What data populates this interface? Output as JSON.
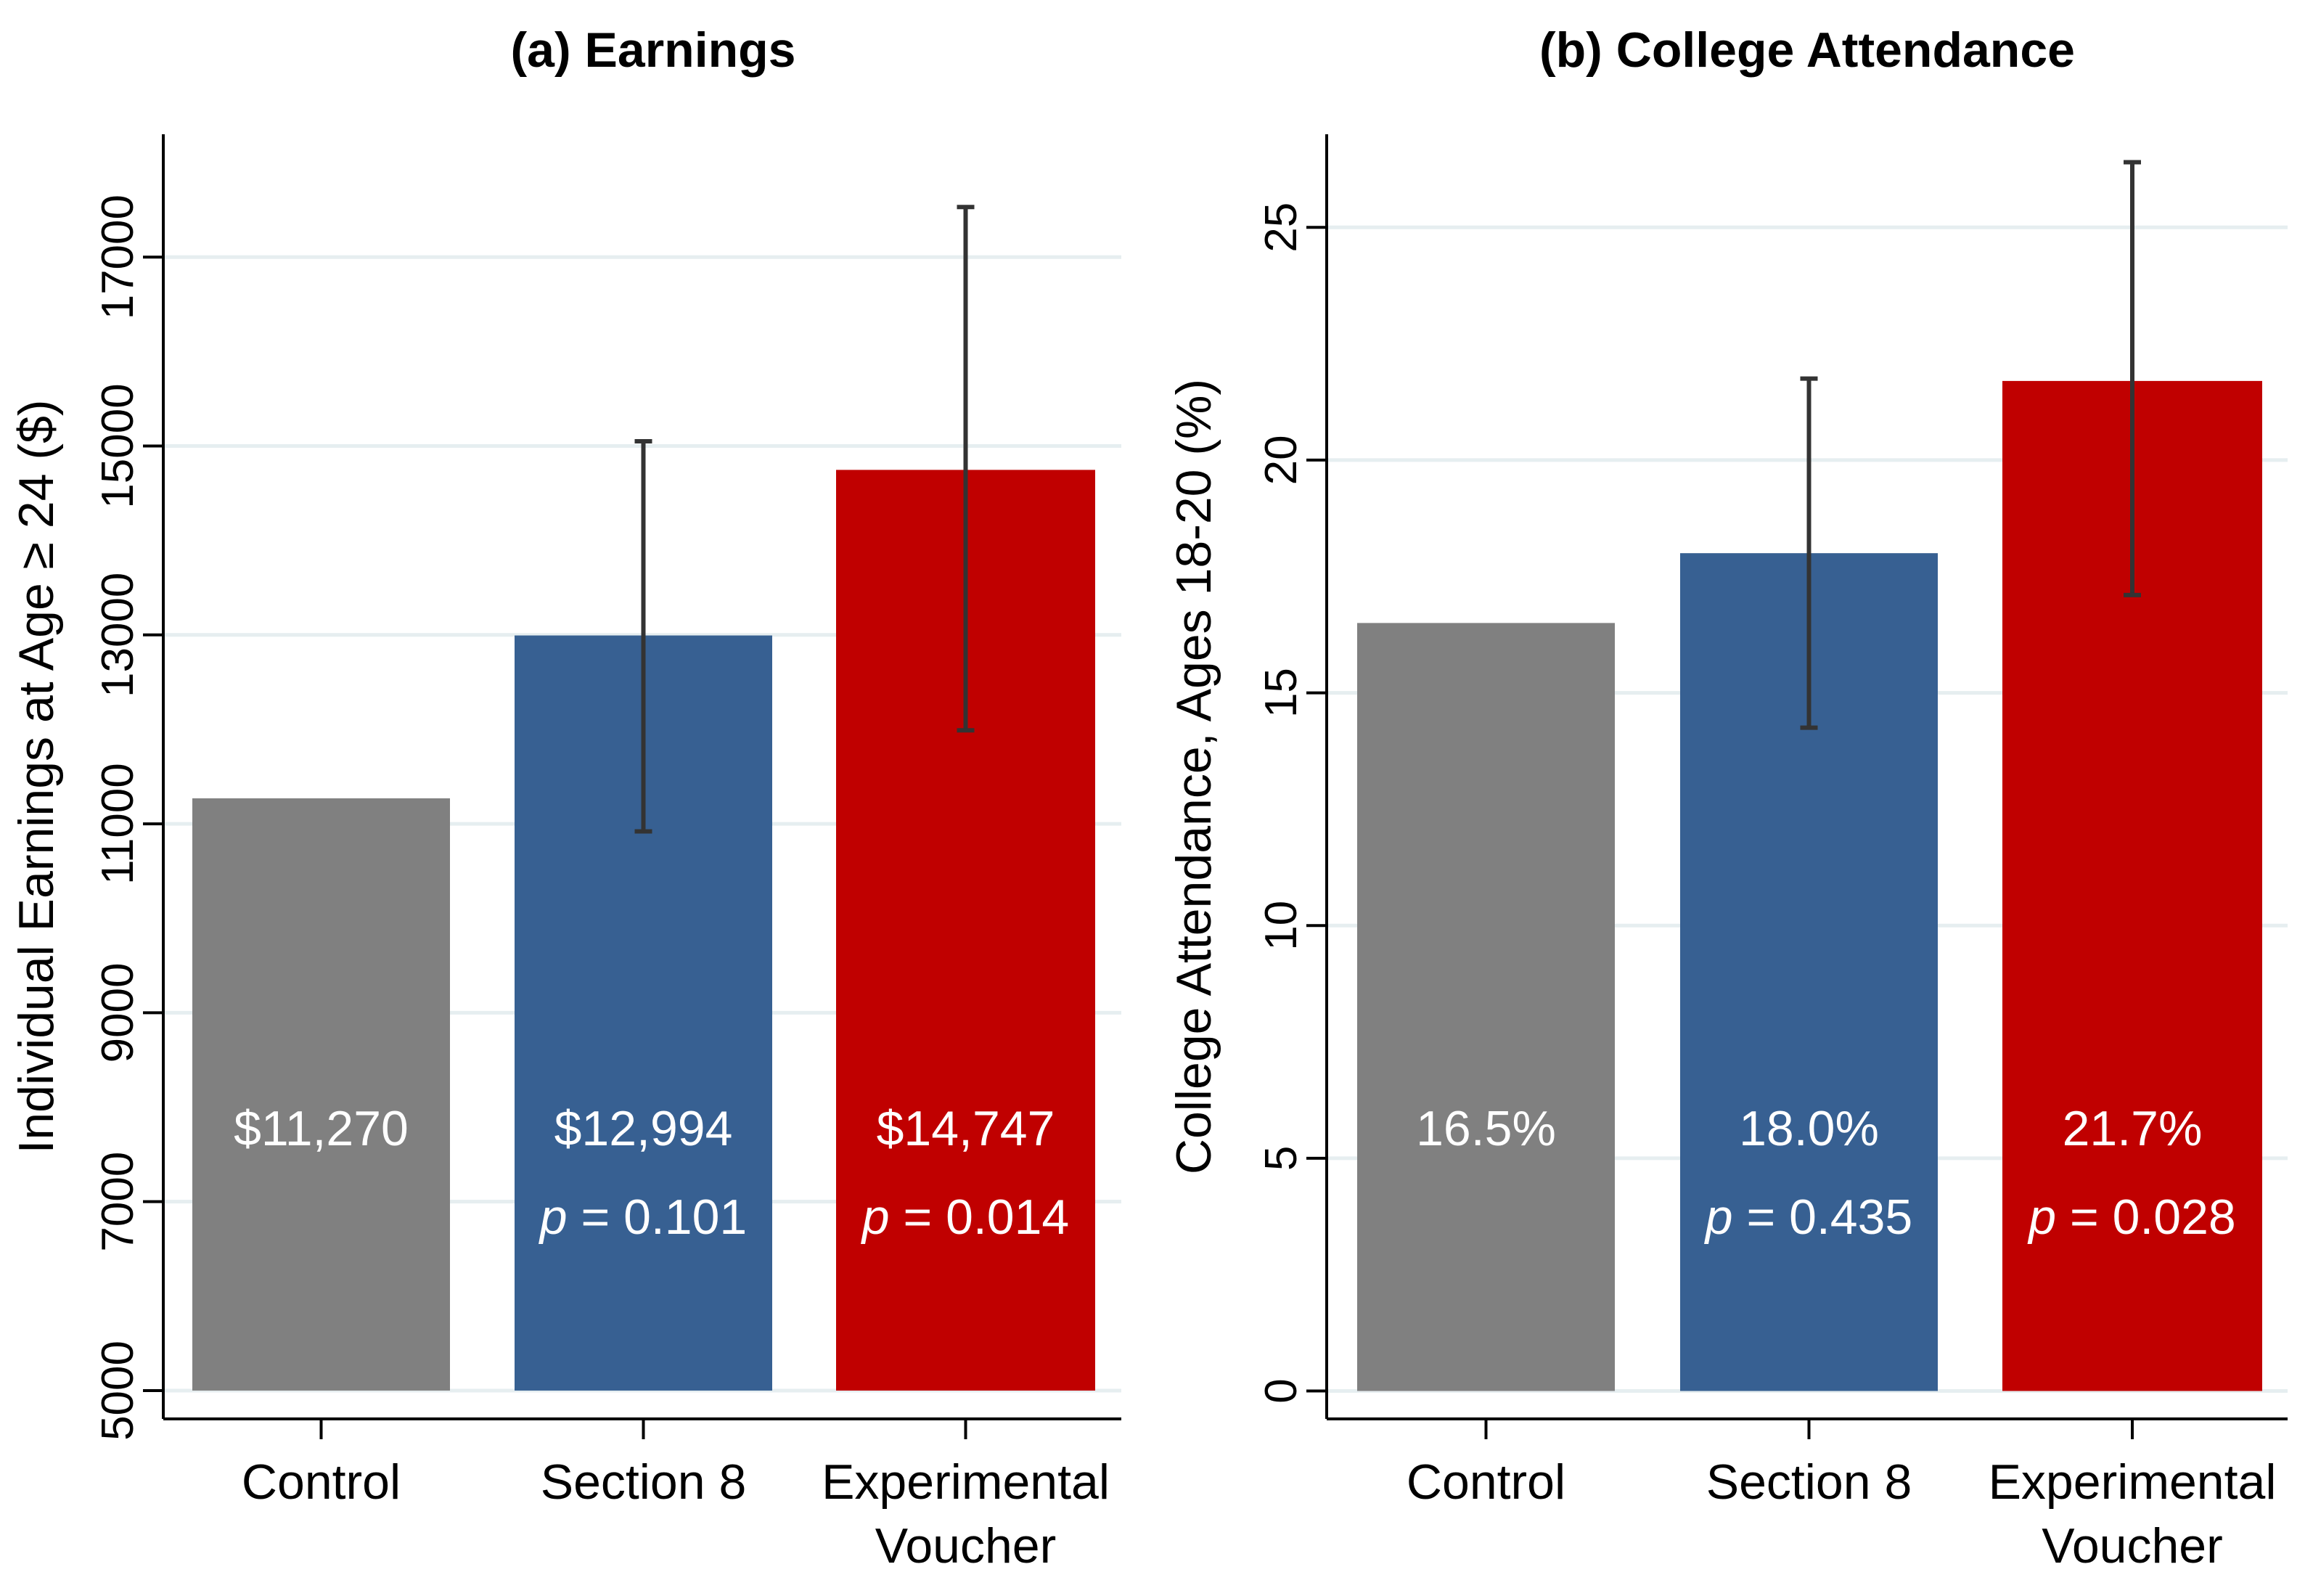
{
  "figure": {
    "background": "#ffffff",
    "grid_color": "#e6eef0",
    "errorbar_color": "#333333",
    "bar_colors": [
      "#808080",
      "#376092",
      "#c00000"
    ]
  },
  "chart_data": [
    {
      "type": "bar",
      "title": "(a) Earnings",
      "xlabel": "",
      "ylabel": "Individual Earnings at Age ≥ 24 ($)",
      "categories": [
        [
          "Control"
        ],
        [
          "Section 8"
        ],
        [
          "Experimental",
          "Voucher"
        ]
      ],
      "values": [
        11270,
        12994,
        14747
      ],
      "error_low": [
        null,
        10920,
        11990
      ],
      "error_high": [
        null,
        15050,
        17530
      ],
      "value_labels": [
        "$11,270",
        "$12,994",
        "$14,747"
      ],
      "p_values": [
        null,
        "0.101",
        "0.014"
      ],
      "p_prefix": "p",
      "p_equals": " = ",
      "ylim": [
        4700,
        18300
      ],
      "bar_base": 5000,
      "yticks": [
        5000,
        7000,
        9000,
        11000,
        13000,
        15000,
        17000
      ],
      "grid": true,
      "legend": "none"
    },
    {
      "type": "bar",
      "title": "(b) College Attendance",
      "xlabel": "",
      "ylabel": "College Attendance, Ages 18-20 (%)",
      "categories": [
        [
          "Control"
        ],
        [
          "Section 8"
        ],
        [
          "Experimental",
          "Voucher"
        ]
      ],
      "values": [
        16.5,
        18.0,
        21.7
      ],
      "error_low": [
        null,
        14.25,
        17.1
      ],
      "error_high": [
        null,
        21.75,
        26.4
      ],
      "value_labels": [
        "16.5%",
        "18.0%",
        "21.7%"
      ],
      "p_values": [
        null,
        "0.435",
        "0.028"
      ],
      "p_prefix": "p",
      "p_equals": " = ",
      "ylim": [
        -0.6,
        27.0
      ],
      "bar_base": 0,
      "yticks": [
        0,
        5,
        10,
        15,
        20,
        25
      ],
      "grid": true,
      "legend": "none"
    }
  ]
}
